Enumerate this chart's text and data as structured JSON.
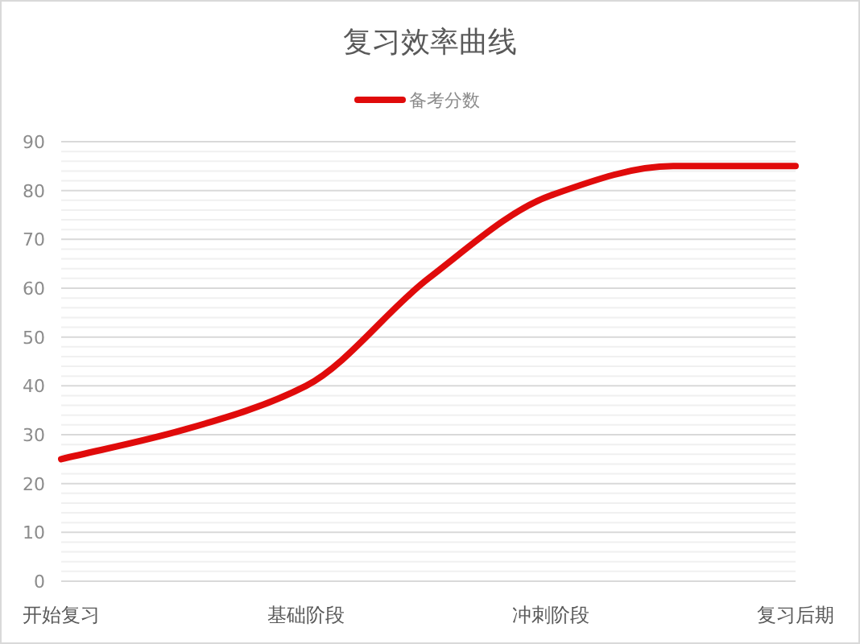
{
  "chart_data": {
    "type": "line",
    "title": "复习效率曲线",
    "categories": [
      "开始复习",
      null,
      "基础阶段",
      null,
      "冲刺阶段",
      null,
      "复习后期"
    ],
    "series": [
      {
        "name": "备考分数",
        "color": "#e00b0b",
        "values": [
          25,
          31,
          40,
          62,
          79,
          85,
          85
        ]
      }
    ],
    "ylim": [
      0,
      90
    ],
    "yticks": [
      0,
      {
        "value": 2,
        "label": null
      },
      {
        "value": 4,
        "label": null
      },
      {
        "value": 6,
        "label": null
      },
      {
        "value": 8,
        "label": null
      },
      10,
      {
        "value": 12,
        "label": null
      },
      {
        "value": 14,
        "label": null
      },
      {
        "value": 16,
        "label": null
      },
      {
        "value": 18,
        "label": null
      },
      20,
      {
        "value": 22,
        "label": null
      },
      {
        "value": 24,
        "label": null
      },
      {
        "value": 26,
        "label": null
      },
      {
        "value": 28,
        "label": null
      },
      30,
      {
        "value": 32,
        "label": null
      },
      {
        "value": 34,
        "label": null
      },
      {
        "value": 36,
        "label": null
      },
      {
        "value": 38,
        "label": null
      },
      40,
      {
        "value": 42,
        "label": null
      },
      {
        "value": 44,
        "label": null
      },
      {
        "value": 46,
        "label": null
      },
      {
        "value": 48,
        "label": null
      },
      50,
      {
        "value": 52,
        "label": null
      },
      {
        "value": 54,
        "label": null
      },
      {
        "value": 56,
        "label": null
      },
      {
        "value": 58,
        "label": null
      },
      60,
      {
        "value": 62,
        "label": null
      },
      {
        "value": 64,
        "label": null
      },
      {
        "value": 66,
        "label": null
      },
      {
        "value": 68,
        "label": null
      },
      70,
      {
        "value": 72,
        "label": null
      },
      {
        "value": 74,
        "label": null
      },
      {
        "value": 76,
        "label": null
      },
      {
        "value": 78,
        "label": null
      },
      80,
      {
        "value": 82,
        "label": null
      },
      {
        "value": 84,
        "label": null
      },
      {
        "value": 86,
        "label": null
      },
      {
        "value": 88,
        "label": null
      },
      90
    ],
    "grid": "y",
    "legend": "top",
    "marker": "none",
    "line_style": "solid"
  }
}
